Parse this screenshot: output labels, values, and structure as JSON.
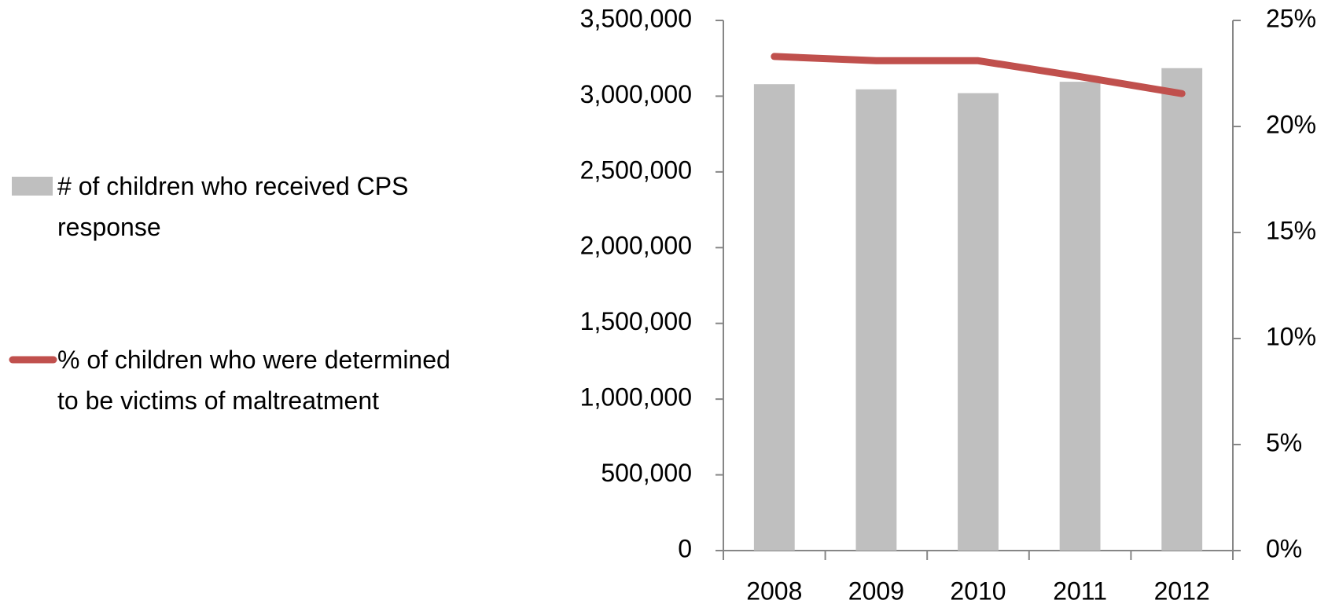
{
  "chart_data": {
    "type": "bar_line",
    "categories": [
      "2008",
      "2009",
      "2010",
      "2011",
      "2012"
    ],
    "series": [
      {
        "name": "# of children who received CPS response",
        "color": "#bfbfbf",
        "type": "bar",
        "values": [
          3079000,
          3045000,
          3020000,
          3095000,
          3185000
        ]
      },
      {
        "name": "% of children who were determined to be victims of maltreatment",
        "color": "#c0504d",
        "type": "line",
        "axis": "y2",
        "values": [
          23.3,
          23.1,
          23.1,
          22.35,
          21.55
        ]
      }
    ],
    "ylim": [
      0,
      3500000
    ],
    "yticks": [
      0,
      {
        "value": 500000,
        "label": "500,000"
      },
      {
        "value": 1000000,
        "label": "1,000,000"
      },
      {
        "value": 1500000,
        "label": "1,500,000"
      },
      {
        "value": 2000000,
        "label": "2,000,000"
      },
      {
        "value": 2500000,
        "label": "2,500,000"
      },
      {
        "value": 3000000,
        "label": "3,000,000"
      },
      {
        "value": 3500000,
        "label": "3,500,000"
      }
    ],
    "y2lim": [
      0,
      25
    ],
    "y2ticks": [
      {
        "value": 0,
        "label": "0%"
      },
      {
        "value": 5,
        "label": "5%"
      },
      {
        "value": 10,
        "label": "10%"
      },
      {
        "value": 15,
        "label": "15%"
      },
      {
        "value": 20,
        "label": "20%"
      },
      {
        "value": 25,
        "label": "25%"
      }
    ],
    "grid": false
  }
}
